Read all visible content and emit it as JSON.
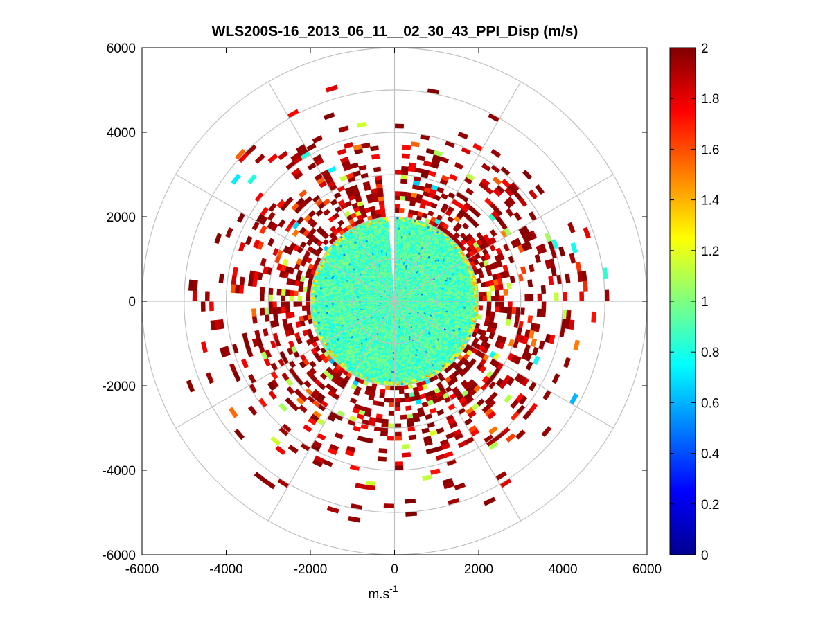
{
  "chart_data": {
    "type": "heatmap",
    "subtype": "polar-ppi",
    "title": "WLS200S-16_2013_06_11__02_30_43_PPI_Disp (m/s)",
    "xlabel": "m.s",
    "xlabel_superscript": "-1",
    "ylabel": "",
    "xlim": [
      -6000,
      6000
    ],
    "ylim": [
      -6000,
      6000
    ],
    "xticks": [
      -6000,
      -4000,
      -2000,
      0,
      2000,
      4000,
      6000
    ],
    "yticks": [
      6000,
      4000,
      2000,
      0,
      -2000,
      -4000,
      -6000
    ],
    "xtick_labels": [
      "-6000",
      "-4000",
      "-2000",
      "0",
      "2000",
      "4000",
      "6000"
    ],
    "ytick_labels": [
      "6000",
      "4000",
      "2000",
      "0",
      "-2000",
      "-4000",
      "-6000"
    ],
    "polar_grid": {
      "range_rings": [
        1000,
        2000,
        3000,
        4000,
        5000,
        6000
      ],
      "spokes_deg": [
        0,
        30,
        60,
        90,
        120,
        150,
        180,
        210,
        240,
        270,
        300,
        330
      ]
    },
    "colorbar": {
      "min": 0,
      "max": 2,
      "ticks": [
        2,
        1.8,
        1.6,
        1.4,
        1.2,
        1,
        0.8,
        0.6,
        0.4,
        0.2,
        0
      ],
      "tick_labels": [
        "2",
        "1.8",
        "1.6",
        "1.4",
        "1.2",
        "1",
        "0.8",
        "0.6",
        "0.4",
        "0.2",
        "0"
      ],
      "colormap": "jet"
    },
    "field_summary": {
      "inner_disk_radius": 2000,
      "inner_disk_typical_value": 0.9,
      "outer_sparse_extent": 5300,
      "outer_typical_value": 2,
      "missing_sector_azimuth_deg": [
        355,
        360
      ]
    }
  }
}
